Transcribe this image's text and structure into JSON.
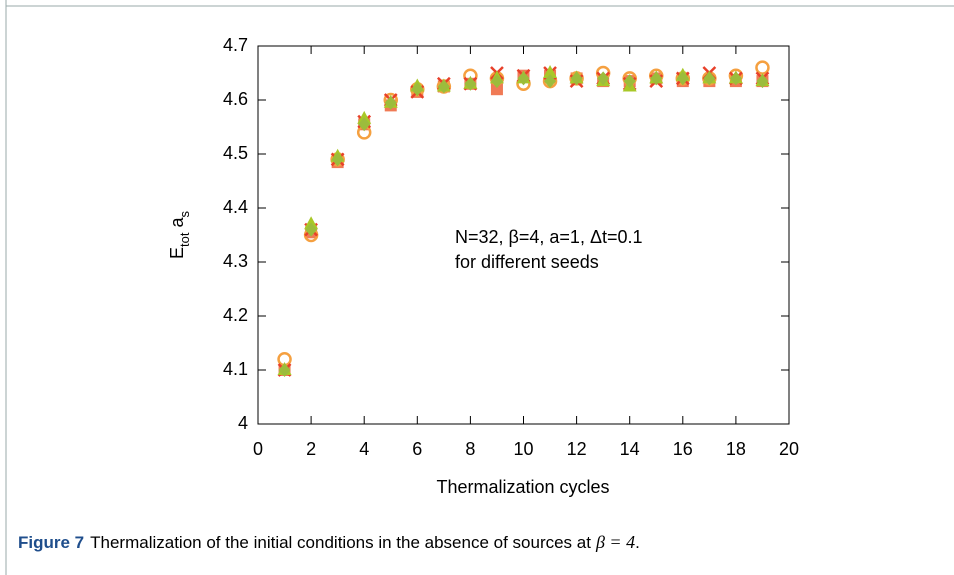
{
  "chart_data": {
    "type": "scatter",
    "xlabel": "Thermalization cycles",
    "ylabel": [
      "E",
      "tot",
      " a",
      "s"
    ],
    "annotations": [
      "N=32, β=4, a=1, Δt=0.1",
      "for different seeds"
    ],
    "x": [
      1,
      2,
      3,
      4,
      5,
      6,
      7,
      8,
      9,
      10,
      11,
      12,
      13,
      14,
      15,
      16,
      17,
      18,
      19
    ],
    "series": [
      {
        "marker": "square",
        "color": "#f07a55",
        "values": [
          4.1,
          4.355,
          4.485,
          4.555,
          4.59,
          4.615,
          4.625,
          4.63,
          4.62,
          4.645,
          4.645,
          4.64,
          4.635,
          4.635,
          4.64,
          4.635,
          4.635,
          4.635,
          4.635
        ]
      },
      {
        "marker": "circle",
        "color": "#f5a040",
        "values": [
          4.12,
          4.35,
          4.49,
          4.54,
          4.6,
          4.62,
          4.625,
          4.645,
          4.64,
          4.63,
          4.635,
          4.64,
          4.65,
          4.64,
          4.645,
          4.64,
          4.64,
          4.645,
          4.66
        ]
      },
      {
        "marker": "cross",
        "color": "#e8402a",
        "values": [
          4.1,
          4.36,
          4.49,
          4.56,
          4.6,
          4.615,
          4.63,
          4.63,
          4.65,
          4.645,
          4.65,
          4.635,
          4.64,
          4.63,
          4.635,
          4.64,
          4.65,
          4.64,
          4.64
        ]
      },
      {
        "marker": "triangle",
        "color": "#a8c828",
        "values": [
          4.1,
          4.37,
          4.495,
          4.565,
          4.595,
          4.625,
          4.625,
          4.63,
          4.64,
          4.64,
          4.65,
          4.64,
          4.635,
          4.625,
          4.64,
          4.645,
          4.64,
          4.64,
          4.635
        ]
      },
      {
        "marker": "diamond",
        "color": "#9cbc3c",
        "values": [
          4.1,
          4.36,
          4.49,
          4.555,
          4.595,
          4.62,
          4.625,
          4.63,
          4.635,
          4.64,
          4.635,
          4.64,
          4.64,
          4.635,
          4.64,
          4.64,
          4.64,
          4.64,
          4.635
        ]
      }
    ],
    "xlim": [
      0,
      20
    ],
    "xticks": [
      0,
      2,
      4,
      6,
      8,
      10,
      12,
      14,
      16,
      18,
      20
    ],
    "ylim": [
      4,
      4.7
    ],
    "yticks": [
      4,
      4.1,
      4.2,
      4.3,
      4.4,
      4.5,
      4.6,
      4.7
    ]
  },
  "caption": {
    "label": "Figure 7",
    "text": "Thermalization of the initial conditions in the absence of sources at",
    "math": "β = 4",
    "end": "."
  }
}
